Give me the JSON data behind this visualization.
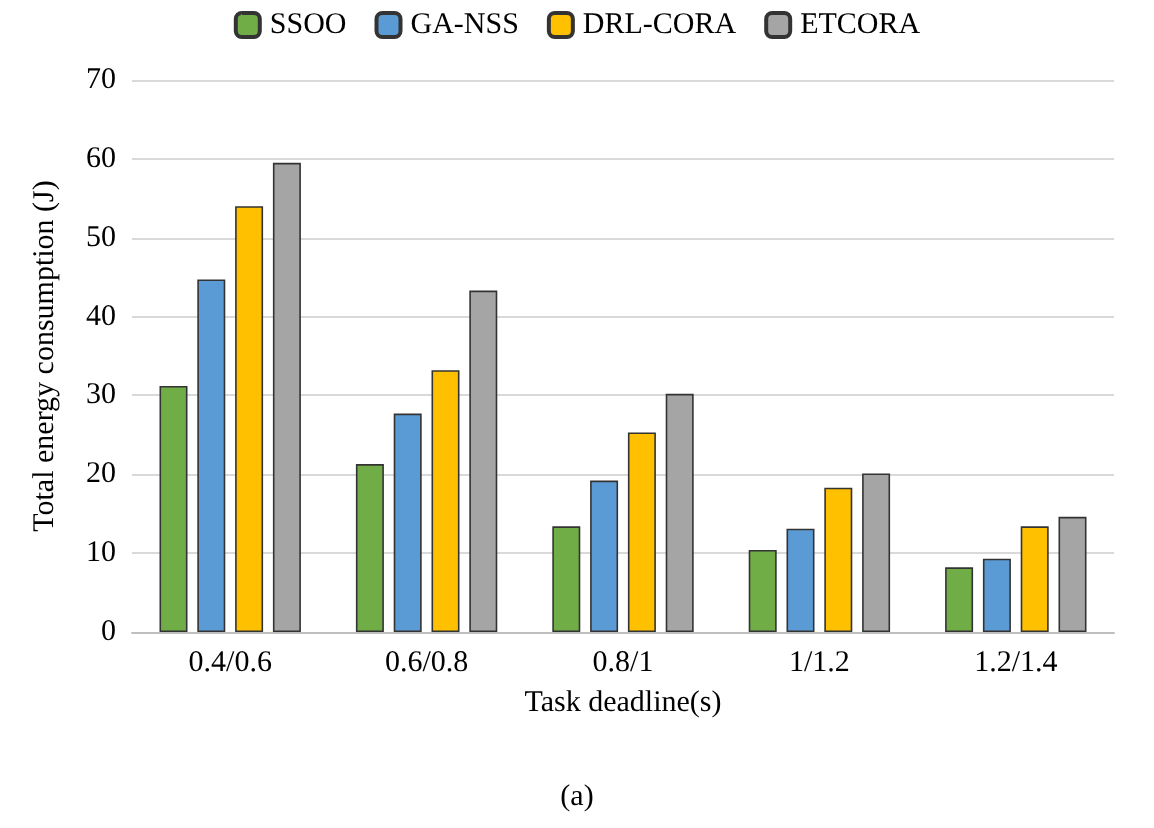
{
  "chart_data": {
    "type": "bar",
    "xlabel": "Task deadline(s)",
    "ylabel": "Total energy consumption (J)",
    "categories": [
      "0.4/0.6",
      "0.6/0.8",
      "0.8/1",
      "1/1.2",
      "1.2/1.4"
    ],
    "series": [
      {
        "name": "SSOO",
        "color": "#70ad47",
        "values": [
          31.2,
          21.3,
          13.4,
          10.4,
          8.2
        ]
      },
      {
        "name": "GA-NSS",
        "color": "#5b9bd5",
        "values": [
          44.7,
          27.7,
          19.2,
          13.1,
          9.3
        ]
      },
      {
        "name": "DRL-CORA",
        "color": "#ffc000",
        "values": [
          54,
          33.2,
          25.3,
          18.3,
          13.4
        ]
      },
      {
        "name": "ETCORA",
        "color": "#a5a5a5",
        "values": [
          59.5,
          43.3,
          30.2,
          20.1,
          14.6
        ]
      }
    ],
    "ylim": [
      0,
      70
    ],
    "yticks": [
      0,
      10,
      20,
      30,
      40,
      50,
      60,
      70
    ],
    "grid": "y",
    "legend": "top",
    "annotations": [
      "(a)"
    ]
  }
}
